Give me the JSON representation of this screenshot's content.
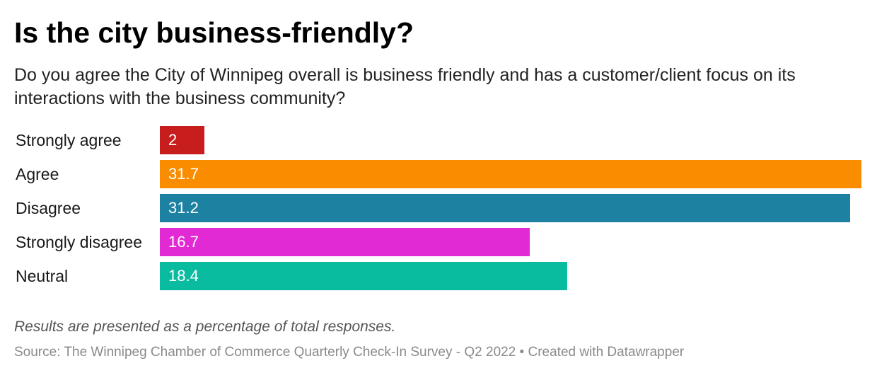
{
  "header": {
    "title": "Is the city business-friendly?",
    "subtitle": "Do you agree the City of Winnipeg overall is business friendly and has a customer/client focus on its interactions with the business community?"
  },
  "footer": {
    "note": "Results are presented as a percentage of total responses.",
    "source": "Source: The Winnipeg Chamber of Commerce Quarterly Check-In Survey - Q2 2022 • Created with Datawrapper"
  },
  "chart_data": {
    "type": "bar",
    "orientation": "horizontal",
    "title": "Is the city business-friendly?",
    "categories": [
      "Strongly agree",
      "Agree",
      "Disagree",
      "Strongly disagree",
      "Neutral"
    ],
    "values": [
      2,
      31.7,
      31.2,
      16.7,
      18.4
    ],
    "value_labels": [
      "2",
      "31.7",
      "31.2",
      "16.7",
      "18.4"
    ],
    "colors": [
      "#c71e1d",
      "#fa8c00",
      "#1d81a2",
      "#e12ad4",
      "#09bb9f"
    ],
    "xlim": [
      0,
      31.7
    ],
    "grid": false,
    "legend": "none"
  }
}
